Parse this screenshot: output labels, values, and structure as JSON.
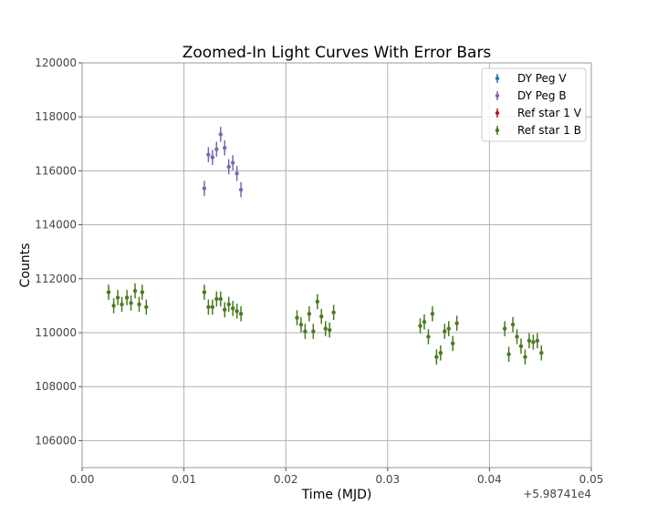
{
  "chart_data": {
    "type": "scatter",
    "title": "Zoomed-In Light Curves With Error Bars",
    "xlabel": "Time (MJD)",
    "ylabel": "Counts",
    "x_offset_label": "+5.98741e4",
    "xlim": [
      0.0,
      0.05
    ],
    "ylim": [
      105000,
      120000
    ],
    "x_ticks": [
      "0.00",
      "0.01",
      "0.02",
      "0.03",
      "0.04",
      "0.05"
    ],
    "y_ticks": [
      "106000",
      "108000",
      "110000",
      "112000",
      "114000",
      "116000",
      "118000",
      "120000"
    ],
    "grid": true,
    "legend_placement": "top-right",
    "series": [
      {
        "name": "DY Peg V",
        "color": "#1f77b4",
        "x": [],
        "y": [],
        "yerr": []
      },
      {
        "name": "DY Peg B",
        "color": "#7b68b0",
        "x": [
          0.012,
          0.0124,
          0.0128,
          0.0132,
          0.0136,
          0.014,
          0.0144,
          0.0148,
          0.0152,
          0.0156
        ],
        "y": [
          115350,
          116600,
          116500,
          116800,
          117350,
          116850,
          116150,
          116300,
          115900,
          115300
        ],
        "yerr": [
          280,
          280,
          280,
          280,
          280,
          280,
          280,
          280,
          280,
          280
        ]
      },
      {
        "name": "Ref star 1 V",
        "color": "#b2182b",
        "x": [],
        "y": [],
        "yerr": []
      },
      {
        "name": "Ref star 1 B",
        "color": "#4a7a1f",
        "x": [
          0.0026,
          0.0031,
          0.0035,
          0.0039,
          0.0044,
          0.0048,
          0.0052,
          0.0056,
          0.0059,
          0.0063,
          0.012,
          0.0124,
          0.0128,
          0.0132,
          0.0136,
          0.014,
          0.0144,
          0.0148,
          0.0152,
          0.0156,
          0.0211,
          0.0215,
          0.0219,
          0.0223,
          0.0227,
          0.0231,
          0.0235,
          0.0239,
          0.0243,
          0.0247,
          0.0332,
          0.0336,
          0.034,
          0.0344,
          0.0348,
          0.0352,
          0.0356,
          0.036,
          0.0364,
          0.0368,
          0.0415,
          0.0419,
          0.0423,
          0.0427,
          0.0431,
          0.0435,
          0.0439,
          0.0443,
          0.0447,
          0.0451
        ],
        "y": [
          111500,
          111000,
          111300,
          111050,
          111300,
          111100,
          111550,
          111050,
          111500,
          110950,
          111500,
          110950,
          110950,
          111250,
          111250,
          110850,
          111050,
          110900,
          110800,
          110700,
          110550,
          110300,
          110050,
          110700,
          110050,
          111150,
          110600,
          110150,
          110100,
          110750,
          110250,
          110400,
          109850,
          110700,
          109100,
          109250,
          110050,
          110150,
          109600,
          110350,
          110150,
          109200,
          110300,
          109850,
          109500,
          109100,
          109700,
          109650,
          109700,
          109250
        ],
        "yerr": [
          280,
          280,
          280,
          280,
          280,
          280,
          280,
          280,
          280,
          280,
          280,
          280,
          280,
          280,
          280,
          280,
          280,
          280,
          280,
          280,
          280,
          280,
          280,
          280,
          280,
          280,
          280,
          280,
          280,
          280,
          280,
          280,
          280,
          280,
          280,
          280,
          280,
          280,
          280,
          280,
          280,
          280,
          280,
          280,
          280,
          280,
          280,
          280,
          280,
          280
        ]
      }
    ]
  }
}
